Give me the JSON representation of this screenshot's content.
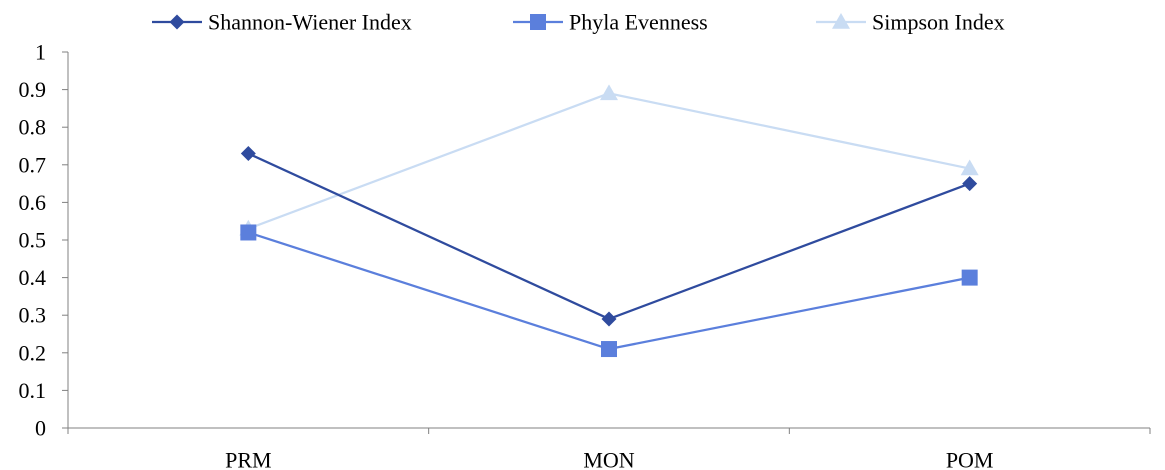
{
  "chart_data": {
    "type": "line",
    "categories": [
      "PRM",
      "MON",
      "POM"
    ],
    "ylim": [
      0,
      1
    ],
    "yticks": [
      "0",
      "0.1",
      "0.2",
      "0.3",
      "0.4",
      "0.5",
      "0.6",
      "0.7",
      "0.8",
      "0.9",
      "1"
    ],
    "grid": false,
    "legend_position": "top",
    "series": [
      {
        "name": "Shannon-Wiener Index",
        "values": [
          0.73,
          0.29,
          0.65
        ],
        "color": "#2f4b9e",
        "marker": "diamond"
      },
      {
        "name": "Phyla Evenness",
        "values": [
          0.52,
          0.21,
          0.4
        ],
        "color": "#5b7fdc",
        "marker": "square"
      },
      {
        "name": "Simpson Index",
        "values": [
          0.53,
          0.89,
          0.69
        ],
        "color": "#c9dcf3",
        "marker": "triangle"
      }
    ]
  }
}
